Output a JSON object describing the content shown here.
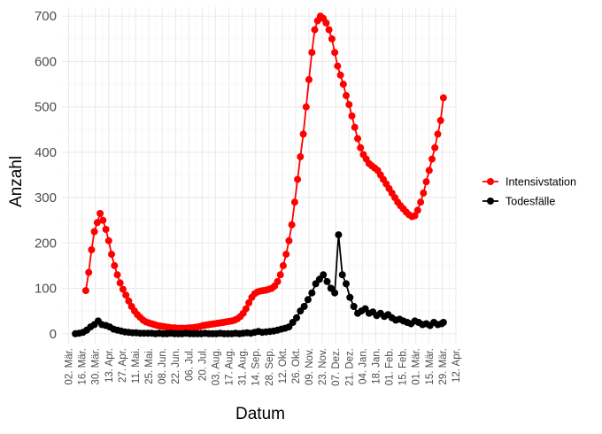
{
  "chart_data": {
    "type": "line",
    "xlabel": "Datum",
    "ylabel": "Anzahl",
    "ylim": [
      -20,
      720
    ],
    "yticks": [
      0,
      100,
      200,
      300,
      400,
      500,
      600,
      700
    ],
    "grid": true,
    "legend_position": "right",
    "x_tick_labels": [
      "02. Mär.",
      "16. Mär.",
      "30. Mär.",
      "13. Apr.",
      "27. Apr.",
      "11. Mai.",
      "25. Mai.",
      "08. Jun.",
      "22. Jun.",
      "06. Jul.",
      "20. Jul.",
      "03. Aug.",
      "17. Aug.",
      "31. Aug.",
      "14. Sep.",
      "28. Sep.",
      "12. Okt.",
      "26. Okt.",
      "09. Nov.",
      "23. Nov.",
      "07. Dez.",
      "21. Dez.",
      "04. Jan.",
      "18. Jan.",
      "01. Feb.",
      "15. Feb.",
      "01. Mär.",
      "15. Mär.",
      "29. Mär.",
      "12. Apr."
    ],
    "series": [
      {
        "name": "Intensivstation",
        "color": "#ff0000",
        "x": [
          "20. Mär.",
          "23. Mär.",
          "26. Mär.",
          "29. Mär.",
          "01. Apr.",
          "04. Apr.",
          "07. Apr.",
          "10. Apr.",
          "13. Apr.",
          "16. Apr.",
          "19. Apr.",
          "22. Apr.",
          "25. Apr.",
          "28. Apr.",
          "01. Mai.",
          "04. Mai.",
          "07. Mai.",
          "10. Mai.",
          "13. Mai.",
          "16. Mai.",
          "19. Mai.",
          "22. Mai.",
          "25. Mai.",
          "28. Mai.",
          "31. Mai.",
          "03. Jun.",
          "06. Jun.",
          "09. Jun.",
          "12. Jun.",
          "15. Jun.",
          "18. Jun.",
          "21. Jun.",
          "24. Jun.",
          "27. Jun.",
          "30. Jun.",
          "03. Jul.",
          "06. Jul.",
          "09. Jul.",
          "12. Jul.",
          "15. Jul.",
          "18. Jul.",
          "21. Jul.",
          "24. Jul.",
          "27. Jul.",
          "30. Jul.",
          "02. Aug.",
          "05. Aug.",
          "08. Aug.",
          "11. Aug.",
          "14. Aug.",
          "17. Aug.",
          "20. Aug.",
          "23. Aug.",
          "26. Aug.",
          "29. Aug.",
          "01. Sep.",
          "04. Sep.",
          "07. Sep.",
          "10. Sep.",
          "13. Sep.",
          "16. Sep.",
          "19. Sep.",
          "22. Sep.",
          "25. Sep.",
          "28. Sep.",
          "01. Okt.",
          "04. Okt.",
          "07. Okt.",
          "10. Okt.",
          "13. Okt.",
          "16. Okt.",
          "19. Okt.",
          "22. Okt.",
          "25. Okt.",
          "28. Okt.",
          "31. Okt.",
          "03. Nov.",
          "06. Nov.",
          "09. Nov.",
          "12. Nov.",
          "15. Nov.",
          "18. Nov.",
          "21. Nov.",
          "24. Nov.",
          "27. Nov.",
          "30. Nov.",
          "03. Dez.",
          "06. Dez.",
          "09. Dez.",
          "12. Dez.",
          "15. Dez.",
          "18. Dez.",
          "21. Dez.",
          "24. Dez.",
          "27. Dez.",
          "30. Dez.",
          "02. Jan.",
          "05. Jan.",
          "08. Jan.",
          "11. Jan.",
          "14. Jan.",
          "17. Jan.",
          "20. Jan.",
          "23. Jan.",
          "26. Jan.",
          "29. Jan.",
          "01. Feb.",
          "04. Feb.",
          "07. Feb.",
          "10. Feb.",
          "13. Feb.",
          "16. Feb.",
          "19. Feb.",
          "22. Feb.",
          "25. Feb.",
          "28. Feb.",
          "03. Mär.",
          "06. Mär.",
          "09. Mär.",
          "12. Mär.",
          "15. Mär.",
          "18. Mär.",
          "21. Mär.",
          "24. Mär.",
          "27. Mär.",
          "30. Mär."
        ],
        "values": [
          95,
          135,
          185,
          225,
          245,
          265,
          250,
          230,
          205,
          175,
          150,
          130,
          112,
          98,
          85,
          72,
          60,
          50,
          42,
          36,
          30,
          26,
          24,
          22,
          20,
          18,
          17,
          16,
          15,
          14,
          13,
          13,
          12,
          12,
          12,
          12,
          13,
          13,
          14,
          15,
          16,
          18,
          19,
          20,
          21,
          22,
          23,
          24,
          25,
          26,
          27,
          28,
          30,
          33,
          38,
          45,
          55,
          68,
          80,
          88,
          92,
          94,
          95,
          96,
          98,
          100,
          105,
          115,
          130,
          150,
          175,
          205,
          240,
          290,
          340,
          390,
          440,
          500,
          560,
          620,
          670,
          690,
          700,
          695,
          685,
          670,
          650,
          620,
          590,
          570,
          550,
          525,
          505,
          480,
          455,
          430,
          410,
          395,
          385,
          375,
          370,
          365,
          360,
          350,
          340,
          330,
          320,
          310,
          300,
          290,
          282,
          275,
          268,
          262,
          258,
          260,
          272,
          290,
          310,
          335,
          360,
          385,
          410,
          440,
          470,
          520
        ]
      },
      {
        "name": "Todesfälle",
        "color": "#000000",
        "x": [
          "09. Mär.",
          "13. Mär.",
          "17. Mär.",
          "21. Mär.",
          "25. Mär.",
          "29. Mär.",
          "02. Apr.",
          "06. Apr.",
          "10. Apr.",
          "14. Apr.",
          "18. Apr.",
          "22. Apr.",
          "26. Apr.",
          "30. Apr.",
          "04. Mai.",
          "08. Mai.",
          "12. Mai.",
          "16. Mai.",
          "20. Mai.",
          "24. Mai.",
          "28. Mai.",
          "01. Jun.",
          "05. Jun.",
          "09. Jun.",
          "13. Jun.",
          "17. Jun.",
          "21. Jun.",
          "25. Jun.",
          "29. Jun.",
          "03. Jul.",
          "07. Jul.",
          "11. Jul.",
          "15. Jul.",
          "19. Jul.",
          "23. Jul.",
          "27. Jul.",
          "31. Jul.",
          "04. Aug.",
          "08. Aug.",
          "12. Aug.",
          "16. Aug.",
          "20. Aug.",
          "24. Aug.",
          "28. Aug.",
          "01. Sep.",
          "05. Sep.",
          "09. Sep.",
          "13. Sep.",
          "17. Sep.",
          "21. Sep.",
          "25. Sep.",
          "29. Sep.",
          "03. Okt.",
          "07. Okt.",
          "11. Okt.",
          "15. Okt.",
          "19. Okt.",
          "23. Okt.",
          "27. Okt.",
          "31. Okt.",
          "04. Nov.",
          "08. Nov.",
          "12. Nov.",
          "16. Nov.",
          "20. Nov.",
          "24. Nov.",
          "28. Nov.",
          "02. Dez.",
          "06. Dez.",
          "10. Dez.",
          "14. Dez.",
          "18. Dez.",
          "22. Dez.",
          "26. Dez.",
          "30. Dez.",
          "03. Jan.",
          "07. Jan.",
          "11. Jan.",
          "15. Jan.",
          "19. Jan.",
          "23. Jan.",
          "27. Jan.",
          "31. Jan.",
          "04. Feb.",
          "08. Feb.",
          "12. Feb.",
          "16. Feb.",
          "20. Feb.",
          "24. Feb.",
          "28. Feb.",
          "04. Mär.",
          "08. Mär.",
          "12. Mär.",
          "16. Mär.",
          "20. Mär.",
          "24. Mär.",
          "28. Mär.",
          "30. Mär."
        ],
        "values": [
          0,
          1,
          3,
          8,
          15,
          20,
          28,
          20,
          18,
          15,
          10,
          8,
          6,
          4,
          3,
          2,
          2,
          1,
          1,
          1,
          1,
          0,
          1,
          0,
          0,
          1,
          0,
          0,
          0,
          1,
          0,
          0,
          0,
          0,
          1,
          0,
          0,
          0,
          1,
          0,
          0,
          0,
          1,
          0,
          1,
          2,
          1,
          3,
          5,
          3,
          4,
          5,
          6,
          8,
          10,
          12,
          15,
          25,
          35,
          50,
          60,
          75,
          90,
          110,
          120,
          130,
          115,
          100,
          90,
          218,
          130,
          110,
          80,
          60,
          45,
          50,
          55,
          45,
          48,
          40,
          45,
          38,
          42,
          35,
          30,
          32,
          28,
          25,
          22,
          28,
          25,
          20,
          22,
          18,
          25,
          20,
          22,
          25
        ]
      }
    ]
  }
}
